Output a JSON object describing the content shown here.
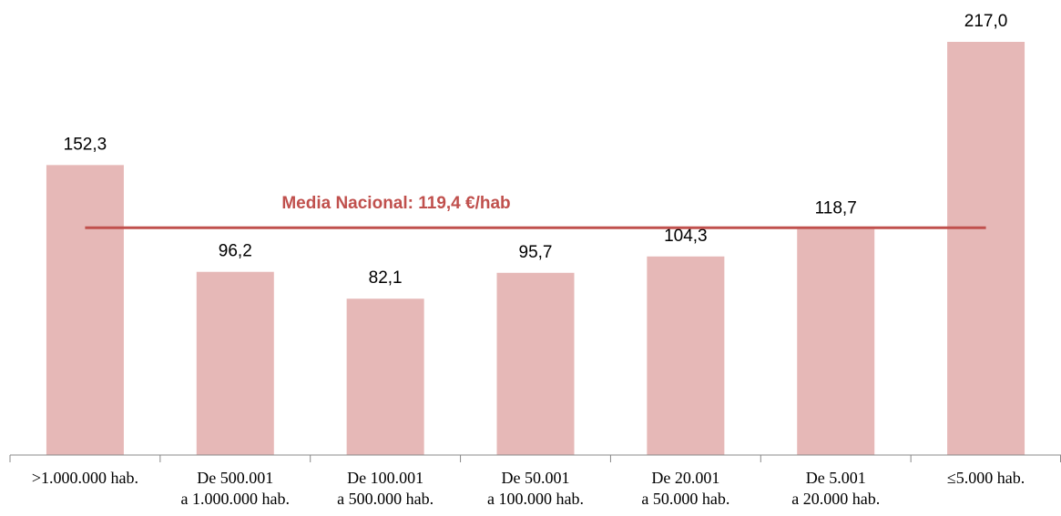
{
  "chart_data": {
    "type": "bar",
    "categories": [
      [
        ">1.000.000 hab."
      ],
      [
        "De 500.001",
        "a 1.000.000 hab."
      ],
      [
        "De 100.001",
        "a 500.000 hab."
      ],
      [
        "De 50.001",
        "a 100.000 hab."
      ],
      [
        "De 20.001",
        "a 50.000 hab."
      ],
      [
        "De 5.001",
        "a 20.000 hab."
      ],
      [
        "≤5.000 hab."
      ]
    ],
    "values": [
      152.3,
      96.2,
      82.1,
      95.7,
      104.3,
      118.7,
      217.0
    ],
    "value_labels": [
      "152,3",
      "96,2",
      "82,1",
      "95,7",
      "104,3",
      "118,7",
      "217,0"
    ],
    "color": "#e6b8b7",
    "reference_line": {
      "label": "Media Nacional: 119,4 €/hab",
      "value": 119.4,
      "color": "#c0504d"
    }
  }
}
